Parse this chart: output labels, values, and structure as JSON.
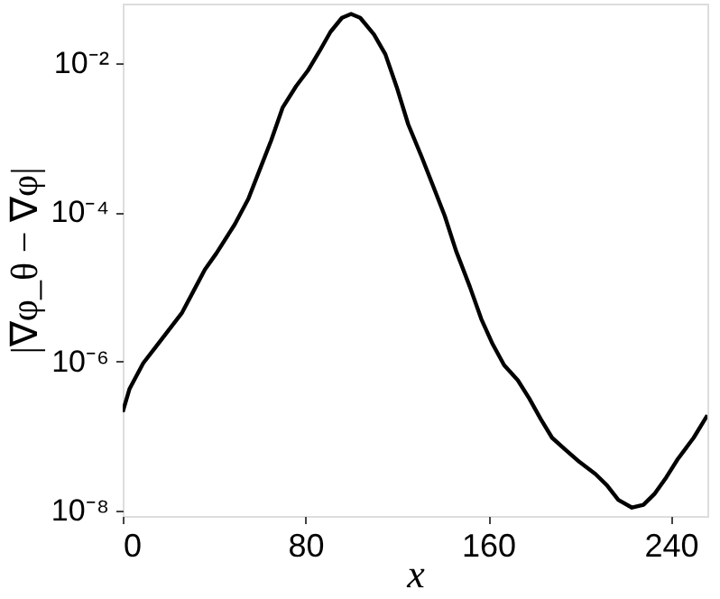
{
  "chart_data": {
    "type": "line",
    "xlabel": "x",
    "ylabel": "|∇φ_θ − ∇φ|",
    "log": true,
    "grid": false,
    "line_style": "solid",
    "marker": "none",
    "xlim": [
      0,
      256
    ],
    "xticks": [
      0,
      80,
      160,
      240
    ],
    "ylim": [
      8.5e-09,
      0.062
    ],
    "yticks": [
      {
        "value": 1e-08,
        "label": "10⁻⁸"
      },
      {
        "value": 1e-06,
        "label": "10⁻⁶"
      },
      {
        "value": 0.0001,
        "label": "10⁻⁴"
      },
      {
        "value": 0.01,
        "label": "10⁻²"
      }
    ],
    "series": [
      {
        "color": "#000000",
        "x": [
          0,
          3,
          9,
          14,
          20,
          26,
          32,
          36,
          41,
          49,
          55,
          60,
          65,
          70,
          76,
          81,
          86,
          91,
          96,
          100,
          104,
          110,
          115,
          120,
          125,
          131,
          136,
          141,
          146,
          152,
          157,
          162,
          167,
          173,
          178,
          183,
          188,
          194,
          200,
          207,
          212,
          217,
          223,
          228,
          233,
          238,
          243,
          250,
          256
        ],
        "values": [
          2.1e-07,
          4.3e-07,
          9.5e-07,
          1.5e-06,
          2.6e-06,
          4.5e-06,
          1e-05,
          1.7e-05,
          2.8e-05,
          6.8e-05,
          0.00015,
          0.00037,
          0.00091,
          0.0025,
          0.0049,
          0.0078,
          0.014,
          0.026,
          0.04,
          0.045,
          0.04,
          0.024,
          0.013,
          0.0047,
          0.0015,
          0.00054,
          0.00022,
          8.9e-05,
          3e-05,
          1e-05,
          3.7e-06,
          1.7e-06,
          8.9e-07,
          5.6e-07,
          3.2e-07,
          1.7e-07,
          9.5e-08,
          6.5e-08,
          4.5e-08,
          3.1e-08,
          2.2e-08,
          1.4e-08,
          1.1e-08,
          1.2e-08,
          1.7e-08,
          2.8e-08,
          4.9e-08,
          9.5e-08,
          1.9e-07
        ]
      }
    ]
  }
}
